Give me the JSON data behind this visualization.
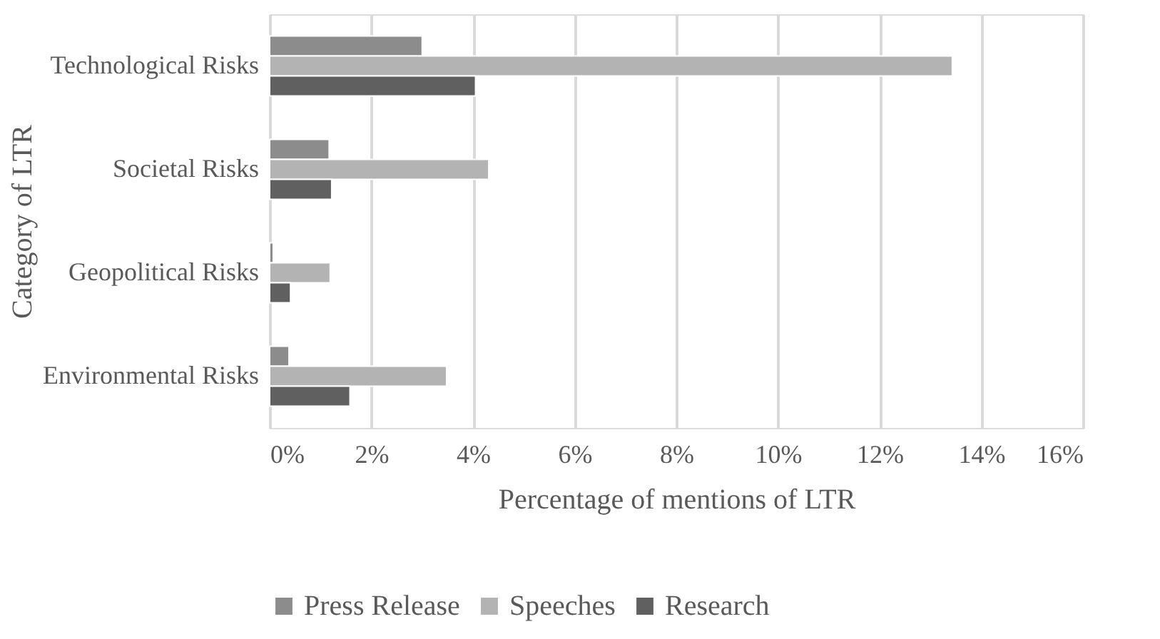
{
  "chart_data": {
    "type": "bar",
    "orientation": "horizontal",
    "xlabel": "Percentage of mentions of LTR",
    "ylabel": "Category of LTR",
    "categories": [
      "Technological Risks",
      "Societal Risks",
      "Geopolitical Risks",
      "Environmental Risks"
    ],
    "series": [
      {
        "name": "Press Release",
        "color": "#8c8c8c",
        "values": [
          3.0,
          1.17,
          0.07,
          0.38
        ]
      },
      {
        "name": "Speeches",
        "color": "#b3b3b3",
        "values": [
          13.43,
          4.31,
          1.19,
          3.48
        ]
      },
      {
        "name": "Research",
        "color": "#606060",
        "values": [
          4.05,
          1.22,
          0.41,
          1.58
        ]
      }
    ],
    "xlim": [
      0,
      16
    ],
    "xticks": [
      {
        "value": 0,
        "label": "0%"
      },
      {
        "value": 2,
        "label": "2%"
      },
      {
        "value": 4,
        "label": "4%"
      },
      {
        "value": 6,
        "label": "6%"
      },
      {
        "value": 8,
        "label": "8%"
      },
      {
        "value": 10,
        "label": "10%"
      },
      {
        "value": 12,
        "label": "12%"
      },
      {
        "value": 14,
        "label": "14%"
      },
      {
        "value": 16,
        "label": "16%"
      }
    ],
    "grid": "x",
    "legend": "bottom"
  }
}
